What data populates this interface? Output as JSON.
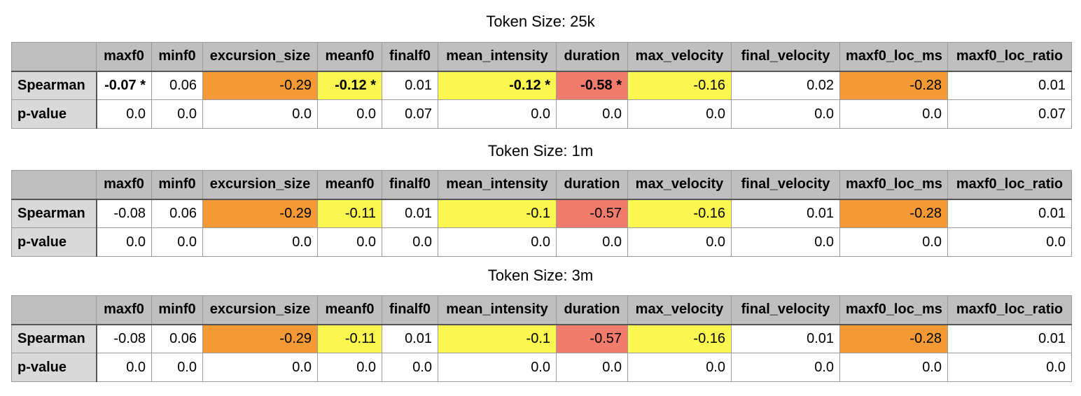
{
  "columns": [
    "maxf0",
    "minf0",
    "excursion_size",
    "meanf0",
    "finalf0",
    "mean_intensity",
    "duration",
    "max_velocity",
    "final_velocity",
    "maxf0_loc_ms",
    "maxf0_loc_ratio"
  ],
  "highlight_colors": {
    "orange": "#f39a36",
    "yellow": "#fbf650",
    "red": "#f17b6c"
  },
  "sections": [
    {
      "title": "Token Size: 25k",
      "rows": [
        {
          "label": "Spearman",
          "cells": [
            {
              "v": "-0.07 *",
              "hl": "",
              "bold": true
            },
            {
              "v": "0.06",
              "hl": "",
              "bold": false
            },
            {
              "v": "-0.29",
              "hl": "orange",
              "bold": false
            },
            {
              "v": "-0.12 *",
              "hl": "yellow",
              "bold": true
            },
            {
              "v": "0.01",
              "hl": "",
              "bold": false
            },
            {
              "v": "-0.12 *",
              "hl": "yellow",
              "bold": true
            },
            {
              "v": "-0.58 *",
              "hl": "red",
              "bold": true
            },
            {
              "v": "-0.16",
              "hl": "yellow",
              "bold": false
            },
            {
              "v": "0.02",
              "hl": "",
              "bold": false
            },
            {
              "v": "-0.28",
              "hl": "orange",
              "bold": false
            },
            {
              "v": "0.01",
              "hl": "",
              "bold": false
            }
          ]
        },
        {
          "label": "p-value",
          "cells": [
            {
              "v": "0.0",
              "hl": "",
              "bold": false
            },
            {
              "v": "0.0",
              "hl": "",
              "bold": false
            },
            {
              "v": "0.0",
              "hl": "",
              "bold": false
            },
            {
              "v": "0.0",
              "hl": "",
              "bold": false
            },
            {
              "v": "0.07",
              "hl": "",
              "bold": false
            },
            {
              "v": "0.0",
              "hl": "",
              "bold": false
            },
            {
              "v": "0.0",
              "hl": "",
              "bold": false
            },
            {
              "v": "0.0",
              "hl": "",
              "bold": false
            },
            {
              "v": "0.0",
              "hl": "",
              "bold": false
            },
            {
              "v": "0.0",
              "hl": "",
              "bold": false
            },
            {
              "v": "0.07",
              "hl": "",
              "bold": false
            }
          ]
        }
      ]
    },
    {
      "title": "Token Size: 1m",
      "rows": [
        {
          "label": "Spearman",
          "cells": [
            {
              "v": "-0.08",
              "hl": "",
              "bold": false
            },
            {
              "v": "0.06",
              "hl": "",
              "bold": false
            },
            {
              "v": "-0.29",
              "hl": "orange",
              "bold": false
            },
            {
              "v": "-0.11",
              "hl": "yellow",
              "bold": false
            },
            {
              "v": "0.01",
              "hl": "",
              "bold": false
            },
            {
              "v": "-0.1",
              "hl": "yellow",
              "bold": false
            },
            {
              "v": "-0.57",
              "hl": "red",
              "bold": false
            },
            {
              "v": "-0.16",
              "hl": "yellow",
              "bold": false
            },
            {
              "v": "0.01",
              "hl": "",
              "bold": false
            },
            {
              "v": "-0.28",
              "hl": "orange",
              "bold": false
            },
            {
              "v": "0.01",
              "hl": "",
              "bold": false
            }
          ]
        },
        {
          "label": "p-value",
          "cells": [
            {
              "v": "0.0",
              "hl": "",
              "bold": false
            },
            {
              "v": "0.0",
              "hl": "",
              "bold": false
            },
            {
              "v": "0.0",
              "hl": "",
              "bold": false
            },
            {
              "v": "0.0",
              "hl": "",
              "bold": false
            },
            {
              "v": "0.0",
              "hl": "",
              "bold": false
            },
            {
              "v": "0.0",
              "hl": "",
              "bold": false
            },
            {
              "v": "0.0",
              "hl": "",
              "bold": false
            },
            {
              "v": "0.0",
              "hl": "",
              "bold": false
            },
            {
              "v": "0.0",
              "hl": "",
              "bold": false
            },
            {
              "v": "0.0",
              "hl": "",
              "bold": false
            },
            {
              "v": "0.0",
              "hl": "",
              "bold": false
            }
          ]
        }
      ]
    },
    {
      "title": "Token Size: 3m",
      "rows": [
        {
          "label": "Spearman",
          "cells": [
            {
              "v": "-0.08",
              "hl": "",
              "bold": false
            },
            {
              "v": "0.06",
              "hl": "",
              "bold": false
            },
            {
              "v": "-0.29",
              "hl": "orange",
              "bold": false
            },
            {
              "v": "-0.11",
              "hl": "yellow",
              "bold": false
            },
            {
              "v": "0.01",
              "hl": "",
              "bold": false
            },
            {
              "v": "-0.1",
              "hl": "yellow",
              "bold": false
            },
            {
              "v": "-0.57",
              "hl": "red",
              "bold": false
            },
            {
              "v": "-0.16",
              "hl": "yellow",
              "bold": false
            },
            {
              "v": "0.01",
              "hl": "",
              "bold": false
            },
            {
              "v": "-0.28",
              "hl": "orange",
              "bold": false
            },
            {
              "v": "0.01",
              "hl": "",
              "bold": false
            }
          ]
        },
        {
          "label": "p-value",
          "cells": [
            {
              "v": "0.0",
              "hl": "",
              "bold": false
            },
            {
              "v": "0.0",
              "hl": "",
              "bold": false
            },
            {
              "v": "0.0",
              "hl": "",
              "bold": false
            },
            {
              "v": "0.0",
              "hl": "",
              "bold": false
            },
            {
              "v": "0.0",
              "hl": "",
              "bold": false
            },
            {
              "v": "0.0",
              "hl": "",
              "bold": false
            },
            {
              "v": "0.0",
              "hl": "",
              "bold": false
            },
            {
              "v": "0.0",
              "hl": "",
              "bold": false
            },
            {
              "v": "0.0",
              "hl": "",
              "bold": false
            },
            {
              "v": "0.0",
              "hl": "",
              "bold": false
            },
            {
              "v": "0.0",
              "hl": "",
              "bold": false
            }
          ]
        }
      ]
    }
  ]
}
